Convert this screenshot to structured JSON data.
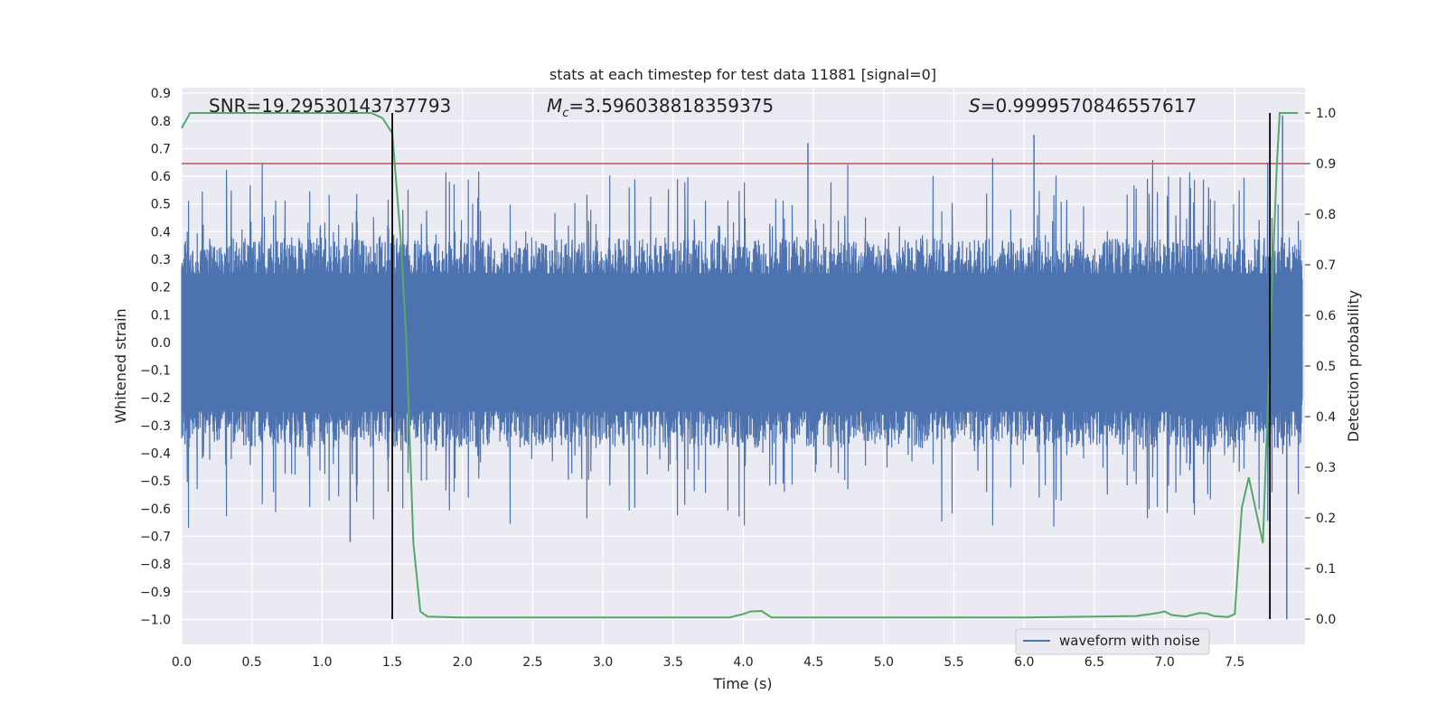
{
  "chart_data": {
    "type": "line",
    "title": "stats at each timestep for test data 11881 [signal=0]",
    "xlabel": "Time (s)",
    "ylabel": "Whitened strain",
    "y2label": "Detection probability",
    "xlim": [
      0.0,
      8.0
    ],
    "ylim": [
      -1.09,
      0.92
    ],
    "y2lim": [
      -0.05,
      1.05
    ],
    "xticks": [
      "0.0",
      "0.5",
      "1.0",
      "1.5",
      "2.0",
      "2.5",
      "3.0",
      "3.5",
      "4.0",
      "4.5",
      "5.0",
      "5.5",
      "6.0",
      "6.5",
      "7.0",
      "7.5"
    ],
    "yticks": [
      "0.9",
      "0.8",
      "0.7",
      "0.6",
      "0.5",
      "0.4",
      "0.3",
      "0.2",
      "0.1",
      "0.0",
      "−0.1",
      "−0.2",
      "−0.3",
      "−0.4",
      "−0.5",
      "−0.6",
      "−0.7",
      "−0.8",
      "−0.9",
      "−1.0"
    ],
    "y2ticks": [
      "1.0",
      "0.9",
      "0.8",
      "0.7",
      "0.6",
      "0.5",
      "0.4",
      "0.3",
      "0.2",
      "0.1",
      "0.0"
    ],
    "annotations": {
      "snr": "SNR=19.29530143737793",
      "mc_symbol": "M",
      "mc_sub": "c",
      "mc_value": "=3.596038818359375",
      "s_symbol": "S",
      "s_value": "=0.9999570846557617"
    },
    "threshold_line": {
      "axis": "y2",
      "value": 0.9,
      "color": "#c44e52"
    },
    "vertical_lines": [
      1.5,
      7.75
    ],
    "waveform_envelope": {
      "name": "waveform with noise",
      "color": "#4c72b0",
      "typical_amplitude": 0.38,
      "peak_amplitude": 0.82,
      "notable_peaks": [
        {
          "t": 4.46,
          "y": 0.72
        },
        {
          "t": 6.07,
          "y": 0.75
        },
        {
          "t": 7.84,
          "y": 0.82
        },
        {
          "t": 1.2,
          "y": -0.72
        },
        {
          "t": 7.87,
          "y": -1.0
        }
      ]
    },
    "series": [
      {
        "name": "detection probability",
        "axis": "y2",
        "color": "#55a868",
        "x": [
          0.0,
          0.06,
          0.2,
          0.6,
          1.0,
          1.35,
          1.43,
          1.5,
          1.56,
          1.6,
          1.65,
          1.7,
          1.75,
          2.0,
          2.5,
          3.0,
          3.5,
          3.9,
          4.0,
          4.05,
          4.13,
          4.2,
          4.3,
          4.5,
          5.0,
          6.0,
          6.8,
          6.95,
          7.0,
          7.05,
          7.15,
          7.25,
          7.3,
          7.35,
          7.45,
          7.5,
          7.55,
          7.6,
          7.7,
          7.75,
          7.8,
          7.82,
          7.85,
          7.95
        ],
        "y": [
          0.97,
          1.0,
          1.0,
          1.0,
          1.0,
          1.0,
          0.99,
          0.96,
          0.75,
          0.55,
          0.15,
          0.015,
          0.005,
          0.003,
          0.003,
          0.003,
          0.003,
          0.003,
          0.01,
          0.015,
          0.016,
          0.003,
          0.003,
          0.003,
          0.003,
          0.003,
          0.006,
          0.012,
          0.015,
          0.008,
          0.005,
          0.012,
          0.011,
          0.006,
          0.004,
          0.01,
          0.22,
          0.28,
          0.15,
          0.55,
          0.9,
          1.0,
          1.0,
          1.0
        ]
      }
    ],
    "legend": {
      "location": "lower-right",
      "entries": [
        "waveform with noise"
      ]
    }
  }
}
